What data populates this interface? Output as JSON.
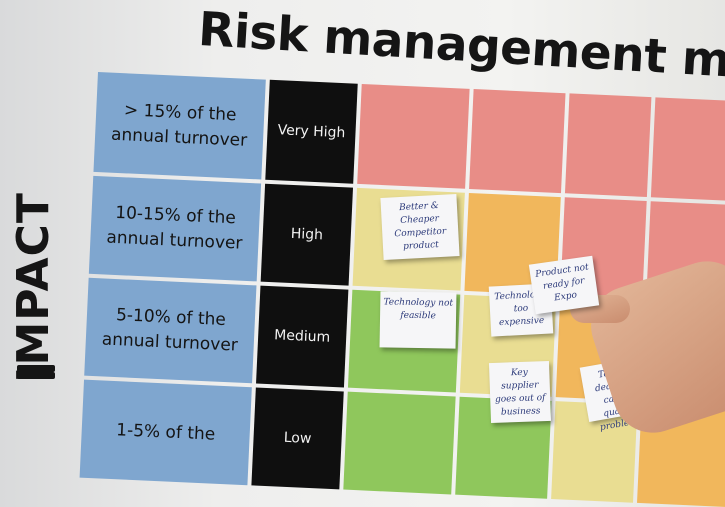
{
  "title": "Risk management matrix",
  "axis_label": "IMPACT",
  "rows": [
    {
      "impact": "> 15% of the annual turnover",
      "level": "Very High"
    },
    {
      "impact": "10-15% of the annual turnover",
      "level": "High"
    },
    {
      "impact": "5-10% of the annual turnover",
      "level": "Medium"
    },
    {
      "impact": "1-5% of the",
      "level": "Low"
    }
  ],
  "cell_colors": [
    [
      "#e88d87",
      "#e88d87",
      "#e88d87",
      "#e88d87"
    ],
    [
      "#e9dd92",
      "#f1b75c",
      "#e88d87",
      "#e88d87"
    ],
    [
      "#8fc75c",
      "#e9dd92",
      "#f1b75c",
      "#f0a860"
    ],
    [
      "#8fc75c",
      "#8fc75c",
      "#e9dd92",
      "#f1b75c"
    ]
  ],
  "notes": [
    "Better & Cheaper Competitor product",
    "Technology not feasible",
    "Technology too expensive",
    "Product not ready for Expo",
    "Key supplier goes out of business",
    "Tough deadline cause quality problems"
  ]
}
